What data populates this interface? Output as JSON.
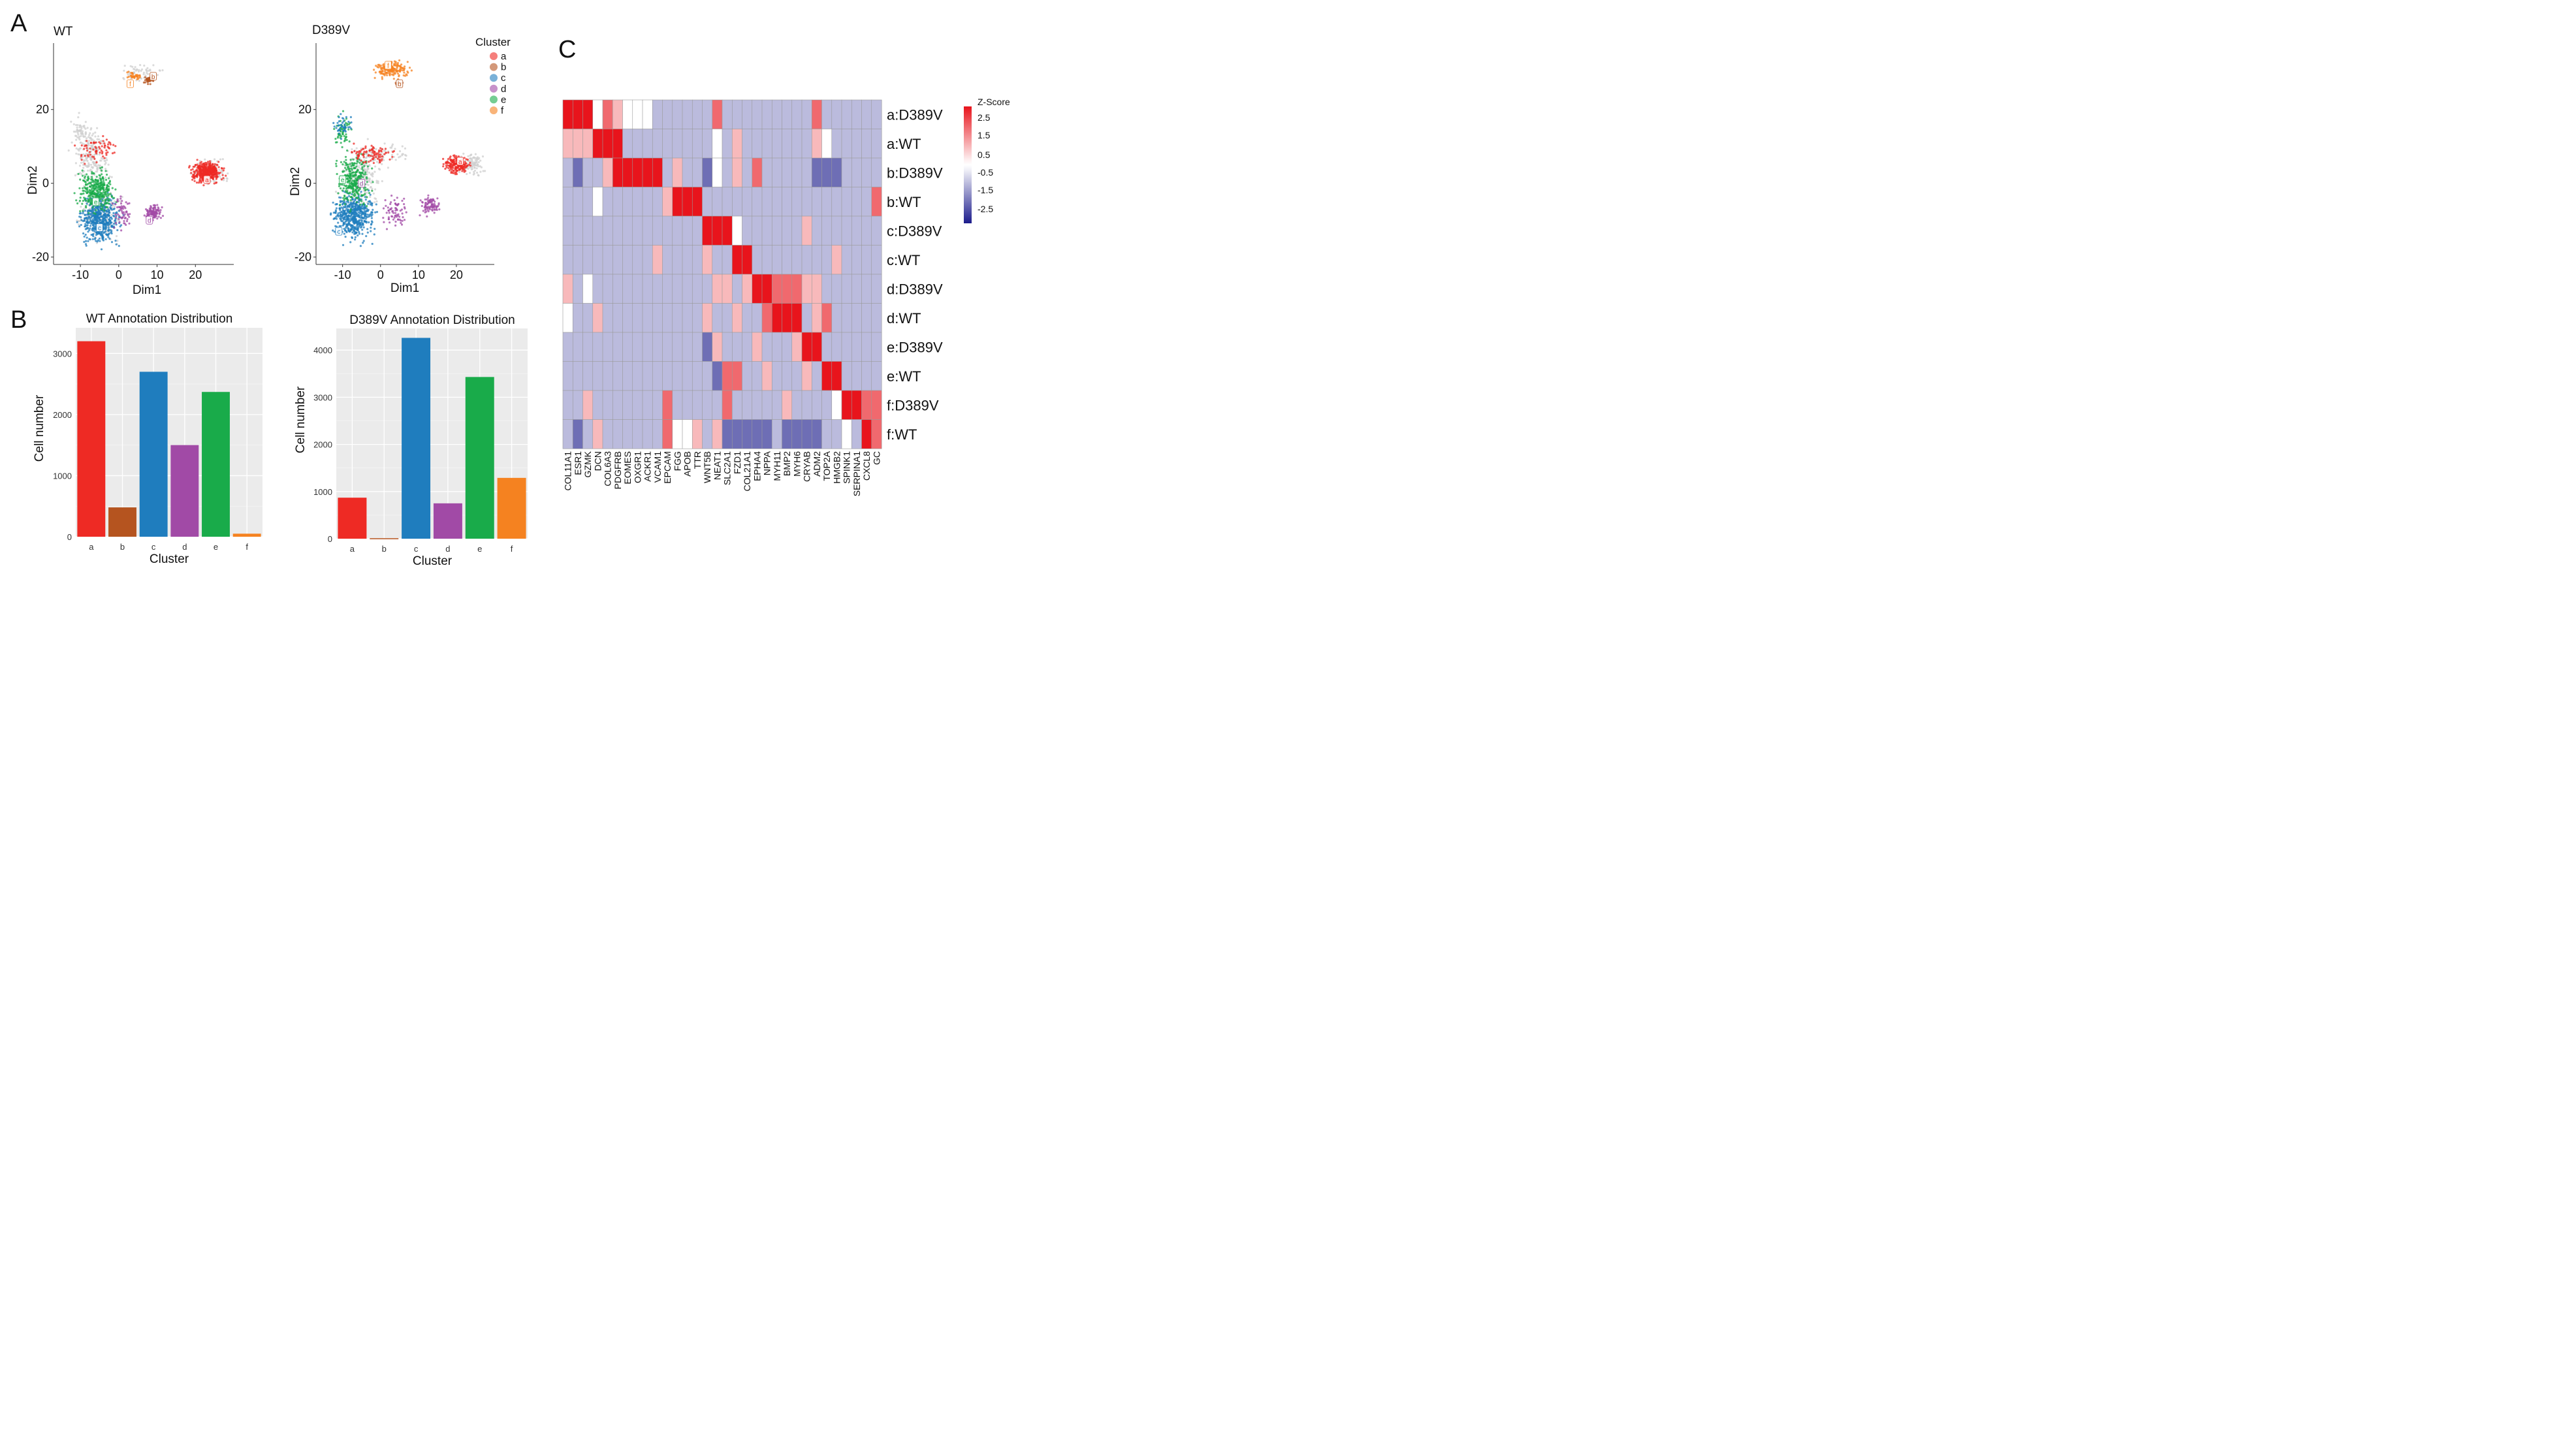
{
  "panel_labels": {
    "a": "A",
    "b": "B",
    "c": "C"
  },
  "colors": {
    "a": "#ee2a24",
    "b": "#b5541f",
    "c": "#1f7dbe",
    "d": "#a14aa6",
    "e": "#19ab4a",
    "f": "#f58220",
    "bg": "#ebebeb",
    "grid": "#ffffff",
    "na": "#cfcfcf"
  },
  "chart_data": [
    {
      "type": "scatter",
      "title": "WT",
      "xlabel": "Dim1",
      "ylabel": "Dim2",
      "xticks": [
        "-10",
        "0",
        "10",
        "20"
      ],
      "yticks": [
        "20",
        "0",
        "-20"
      ],
      "xlim": [
        -17,
        30
      ],
      "ylim": [
        -22,
        38
      ],
      "legend_title": "Cluster",
      "legend": [
        "a",
        "b",
        "c",
        "d",
        "e",
        "f"
      ],
      "cluster_labels": [
        {
          "name": "a",
          "x": 23,
          "y": 1
        },
        {
          "name": "b",
          "x": 9,
          "y": 29
        },
        {
          "name": "c",
          "x": -5,
          "y": -12
        },
        {
          "name": "d",
          "x": 8,
          "y": -10
        },
        {
          "name": "e",
          "x": -6,
          "y": -5
        },
        {
          "name": "f",
          "x": 3,
          "y": 27
        }
      ]
    },
    {
      "type": "scatter",
      "title": "D389V",
      "xlabel": "Dim1",
      "ylabel": "Dim2",
      "xticks": [
        "-10",
        "0",
        "10",
        "20"
      ],
      "yticks": [
        "20",
        "0",
        "-20"
      ],
      "xlim": [
        -17,
        30
      ],
      "ylim": [
        -22,
        38
      ],
      "cluster_labels": [
        {
          "name": "a",
          "x": 21,
          "y": 6
        },
        {
          "name": "b",
          "x": 5,
          "y": 27
        },
        {
          "name": "c",
          "x": -11,
          "y": -13
        },
        {
          "name": "d",
          "x": -5,
          "y": 0
        },
        {
          "name": "e",
          "x": -10,
          "y": 1
        },
        {
          "name": "f",
          "x": 2,
          "y": 32
        }
      ]
    },
    {
      "type": "bar",
      "title": "WT Annotation Distribution",
      "xlabel": "Cluster",
      "ylabel": "Cell number",
      "categories": [
        "a",
        "b",
        "c",
        "d",
        "e",
        "f"
      ],
      "values": [
        3200,
        480,
        2700,
        1500,
        2370,
        50
      ],
      "yticks": [
        "3000",
        "2000",
        "1000",
        "0"
      ],
      "ylim": [
        0,
        3420
      ]
    },
    {
      "type": "bar",
      "title": "D389V Annotation Distribution",
      "xlabel": "Cluster",
      "ylabel": "Cell number",
      "categories": [
        "a",
        "b",
        "c",
        "d",
        "e",
        "f"
      ],
      "values": [
        870,
        10,
        4260,
        750,
        3430,
        1290
      ],
      "yticks": [
        "4000",
        "3000",
        "2000",
        "1000",
        "0"
      ],
      "ylim": [
        0,
        4460
      ]
    },
    {
      "type": "heatmap",
      "title": "",
      "legend_title": "Z-Score",
      "legend_ticks": [
        "2.5",
        "1.5",
        "0.5",
        "-0.5",
        "-1.5",
        "-2.5"
      ],
      "value_range": [
        -3,
        3
      ],
      "rows": [
        "a:D389V",
        "a:WT",
        "b:D389V",
        "b:WT",
        "c:D389V",
        "c:WT",
        "d:D389V",
        "d:WT",
        "e:D389V",
        "e:WT",
        "f:D389V",
        "f:WT"
      ],
      "columns": [
        "COL11A1",
        "ESR1",
        "GZMK",
        "DCN",
        "COL6A3",
        "PDGFRB",
        "EOMES",
        "OXGR1",
        "ACKR1",
        "VCAM1",
        "EPCAM",
        "FGG",
        "APOB",
        "TTR",
        "WNT5B",
        "NEAT1",
        "SLC2A1",
        "FZD1",
        "COL21A1",
        "EPHA4",
        "NPPA",
        "MYH11",
        "BMP2",
        "MYH6",
        "CRYAB",
        "ADM2",
        "TOP2A",
        "HMGB2",
        "SPINK1",
        "SERPINA1",
        "CXCL8",
        "GC"
      ],
      "values": [
        [
          3,
          3,
          3,
          0,
          2,
          1,
          0,
          0,
          0,
          -1,
          -1,
          -1,
          -1,
          -1,
          -1,
          2,
          -1,
          -1,
          -1,
          -1,
          -1,
          -1,
          -1,
          -1,
          -1,
          2,
          -1,
          -1,
          -1,
          -1,
          -1,
          -1
        ],
        [
          1,
          1,
          1,
          3,
          3,
          3,
          -1,
          -1,
          -1,
          -1,
          -1,
          -1,
          -1,
          -1,
          -1,
          0,
          -1,
          1,
          -1,
          -1,
          -1,
          -1,
          -1,
          -1,
          -1,
          1,
          0,
          -1,
          -1,
          -1,
          -1,
          -1
        ],
        [
          -1,
          -2,
          -1,
          -1,
          1,
          3,
          3,
          3,
          3,
          3,
          -1,
          1,
          -1,
          -1,
          -2,
          0,
          -1,
          1,
          -1,
          2,
          -1,
          -1,
          -1,
          -1,
          -1,
          -2,
          -2,
          -2,
          -1,
          -1,
          -1,
          -1
        ],
        [
          -1,
          -1,
          -1,
          0,
          -1,
          -1,
          -1,
          -1,
          -1,
          -1,
          1,
          3,
          3,
          3,
          -1,
          -1,
          -1,
          -1,
          -1,
          -1,
          -1,
          -1,
          -1,
          -1,
          -1,
          -1,
          -1,
          -1,
          -1,
          -1,
          -1,
          2
        ],
        [
          -1,
          -1,
          -1,
          -1,
          -1,
          -1,
          -1,
          -1,
          -1,
          -1,
          -1,
          -1,
          -1,
          -1,
          3,
          3,
          3,
          0,
          -1,
          -1,
          -1,
          -1,
          -1,
          -1,
          1,
          -1,
          -1,
          -1,
          -1,
          -1,
          -1,
          -1
        ],
        [
          -1,
          -1,
          -1,
          -1,
          -1,
          -1,
          -1,
          -1,
          -1,
          1,
          -1,
          -1,
          -1,
          -1,
          1,
          -1,
          -1,
          3,
          3,
          -1,
          -1,
          -1,
          -1,
          -1,
          -1,
          -1,
          -1,
          1,
          -1,
          -1,
          -1,
          -1
        ],
        [
          1,
          -1,
          0,
          -1,
          -1,
          -1,
          -1,
          -1,
          -1,
          -1,
          -1,
          -1,
          -1,
          -1,
          -1,
          1,
          1,
          -1,
          1,
          3,
          3,
          2,
          2,
          2,
          1,
          1,
          -1,
          -1,
          -1,
          -1,
          -1,
          -1
        ],
        [
          0,
          -1,
          -1,
          1,
          -1,
          -1,
          -1,
          -1,
          -1,
          -1,
          -1,
          -1,
          -1,
          -1,
          1,
          -1,
          -1,
          1,
          -1,
          -1,
          2,
          3,
          3,
          3,
          -1,
          1,
          2,
          -1,
          -1,
          -1,
          -1,
          -1
        ],
        [
          -1,
          -1,
          -1,
          -1,
          -1,
          -1,
          -1,
          -1,
          -1,
          -1,
          -1,
          -1,
          -1,
          -1,
          -2,
          1,
          -1,
          -1,
          -1,
          1,
          -1,
          -1,
          -1,
          1,
          3,
          3,
          -1,
          -1,
          -1,
          -1,
          -1,
          -1
        ],
        [
          -1,
          -1,
          -1,
          -1,
          -1,
          -1,
          -1,
          -1,
          -1,
          -1,
          -1,
          -1,
          -1,
          -1,
          -1,
          -2,
          2,
          2,
          -1,
          -1,
          1,
          -1,
          -1,
          -1,
          1,
          -1,
          3,
          3,
          -1,
          -1,
          -1,
          -1
        ],
        [
          -1,
          -1,
          1,
          -1,
          -1,
          -1,
          -1,
          -1,
          -1,
          -1,
          2,
          -1,
          -1,
          -1,
          -1,
          -1,
          2,
          -1,
          -1,
          -1,
          -1,
          -1,
          1,
          -1,
          -1,
          -1,
          -1,
          0,
          3,
          3,
          2,
          2
        ],
        [
          -1,
          -2,
          -1,
          1,
          -1,
          -1,
          -1,
          -1,
          -1,
          -1,
          2,
          0,
          0,
          1,
          -1,
          1,
          -2,
          -2,
          -2,
          -2,
          -2,
          -1,
          -2,
          -2,
          -2,
          -2,
          -1,
          -1,
          0,
          -1,
          3,
          2
        ]
      ]
    }
  ]
}
